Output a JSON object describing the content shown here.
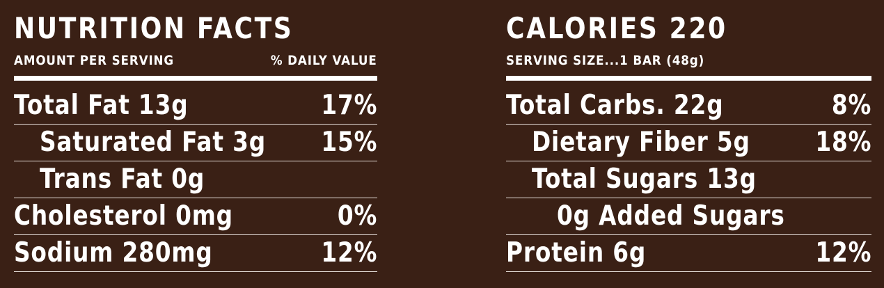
{
  "left": {
    "title": "NUTRITION FACTS",
    "subhead_left": "AMOUNT PER SERVING",
    "subhead_right": "% DAILY VALUE",
    "rows": [
      {
        "name": "Total Fat 13g",
        "value": "17%"
      },
      {
        "name": "Saturated Fat 3g",
        "value": "15%"
      },
      {
        "name": "Trans Fat 0g",
        "value": ""
      },
      {
        "name": "Cholesterol 0mg",
        "value": "0%"
      },
      {
        "name": "Sodium 280mg",
        "value": "12%"
      }
    ]
  },
  "right": {
    "title": "CALORIES 220",
    "subhead_left": "SERVING SIZE...1 BAR (48g)",
    "rows": [
      {
        "name": "Total Carbs. 22g",
        "value": "8%"
      },
      {
        "name": "Dietary Fiber 5g",
        "value": "18%"
      },
      {
        "name": "Total Sugars 13g",
        "value": ""
      },
      {
        "name": "0g Added Sugars",
        "value": ""
      },
      {
        "name": "Protein 6g",
        "value": "12%"
      }
    ]
  },
  "colors": {
    "background": "#3a2015",
    "text": "#ffffff"
  }
}
